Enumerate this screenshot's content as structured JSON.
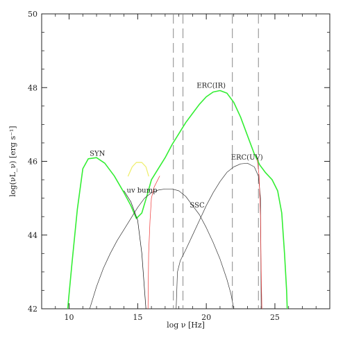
{
  "chart_data": {
    "type": "line",
    "title": "",
    "xlabel": "log ν [Hz]",
    "ylabel": "log(νL_ν) [erg s⁻¹]",
    "xlim": [
      8,
      29
    ],
    "ylim": [
      42,
      50
    ],
    "x_ticks": [
      10,
      15,
      20,
      25
    ],
    "x_tick_labels": [
      "10",
      "15",
      "20",
      "25"
    ],
    "y_ticks": [
      42,
      44,
      46,
      48,
      50
    ],
    "y_tick_labels": [
      "42",
      "44",
      "46",
      "48",
      "50"
    ],
    "grid": false,
    "legend": "none",
    "vertical_lines": [
      17.6,
      18.3,
      21.9,
      23.8
    ],
    "annotations": [
      {
        "text": "SYN",
        "x": 11.5,
        "y": 46.15
      },
      {
        "text": "uv bump",
        "x": 14.2,
        "y": 45.15
      },
      {
        "text": "SSC",
        "x": 18.8,
        "y": 44.75
      },
      {
        "text": "ERC(IR)",
        "x": 19.3,
        "y": 48.0
      },
      {
        "text": "ERC(UV)",
        "x": 21.8,
        "y": 46.05
      }
    ],
    "series": [
      {
        "color": "#33ee33",
        "width": 1.6,
        "points": [
          [
            9.9,
            42.0
          ],
          [
            10.2,
            43.2
          ],
          [
            10.6,
            44.7
          ],
          [
            11.0,
            45.8
          ],
          [
            11.4,
            46.07
          ],
          [
            12.0,
            46.1
          ],
          [
            12.6,
            45.95
          ],
          [
            13.3,
            45.6
          ],
          [
            14.0,
            45.15
          ],
          [
            14.5,
            44.8
          ],
          [
            14.9,
            44.45
          ],
          [
            15.3,
            44.6
          ],
          [
            15.7,
            45.1
          ],
          [
            16.0,
            45.5
          ],
          [
            16.5,
            45.8
          ],
          [
            17.0,
            46.1
          ],
          [
            17.5,
            46.45
          ],
          [
            18.0,
            46.75
          ],
          [
            18.5,
            47.05
          ],
          [
            19.0,
            47.3
          ],
          [
            19.5,
            47.55
          ],
          [
            20.0,
            47.75
          ],
          [
            20.5,
            47.88
          ],
          [
            21.0,
            47.92
          ],
          [
            21.5,
            47.85
          ],
          [
            22.0,
            47.6
          ],
          [
            22.5,
            47.2
          ],
          [
            23.0,
            46.7
          ],
          [
            23.5,
            46.2
          ],
          [
            23.9,
            45.9
          ],
          [
            24.3,
            45.7
          ],
          [
            24.8,
            45.5
          ],
          [
            25.2,
            45.2
          ],
          [
            25.5,
            44.6
          ],
          [
            25.7,
            43.5
          ],
          [
            25.85,
            42.5
          ],
          [
            25.9,
            42.0
          ]
        ]
      },
      {
        "color": "#111111",
        "width": 0.7,
        "points": [
          [
            14.0,
            45.2
          ],
          [
            14.5,
            44.9
          ],
          [
            15.0,
            44.4
          ],
          [
            15.3,
            43.5
          ],
          [
            15.5,
            42.5
          ],
          [
            15.6,
            42.0
          ]
        ]
      },
      {
        "color": "#333333",
        "width": 0.7,
        "points": [
          [
            11.5,
            42.0
          ],
          [
            12.0,
            42.6
          ],
          [
            12.5,
            43.1
          ],
          [
            13.0,
            43.5
          ],
          [
            13.5,
            43.85
          ],
          [
            14.0,
            44.15
          ],
          [
            14.5,
            44.45
          ],
          [
            15.0,
            44.75
          ],
          [
            15.5,
            45.0
          ],
          [
            16.0,
            45.15
          ],
          [
            16.5,
            45.22
          ],
          [
            17.0,
            45.25
          ],
          [
            17.5,
            45.25
          ],
          [
            18.0,
            45.2
          ],
          [
            18.5,
            45.05
          ],
          [
            19.0,
            44.8
          ],
          [
            19.5,
            44.55
          ],
          [
            20.0,
            44.2
          ],
          [
            20.5,
            43.8
          ],
          [
            21.0,
            43.35
          ],
          [
            21.5,
            42.8
          ],
          [
            21.8,
            42.4
          ],
          [
            22.0,
            42.0
          ]
        ]
      },
      {
        "color": "#333333",
        "width": 0.7,
        "points": [
          [
            17.8,
            42.0
          ],
          [
            17.9,
            43.0
          ],
          [
            18.1,
            43.3
          ],
          [
            18.5,
            43.6
          ],
          [
            19.0,
            44.0
          ],
          [
            19.5,
            44.4
          ],
          [
            20.0,
            44.8
          ],
          [
            20.5,
            45.15
          ],
          [
            21.0,
            45.45
          ],
          [
            21.5,
            45.7
          ],
          [
            22.0,
            45.85
          ],
          [
            22.5,
            45.93
          ],
          [
            23.0,
            45.95
          ],
          [
            23.5,
            45.85
          ],
          [
            23.8,
            45.6
          ],
          [
            23.95,
            45.0
          ],
          [
            24.0,
            42.0
          ]
        ]
      },
      {
        "color": "#ee3333",
        "width": 0.7,
        "points": [
          [
            15.75,
            42.0
          ],
          [
            15.8,
            43.5
          ],
          [
            15.9,
            44.4
          ],
          [
            16.0,
            45.0
          ],
          [
            16.2,
            45.3
          ],
          [
            16.6,
            45.6
          ]
        ]
      },
      {
        "color": "#ee3333",
        "width": 0.7,
        "points": [
          [
            23.7,
            46.1
          ],
          [
            23.85,
            45.6
          ],
          [
            23.95,
            44.5
          ],
          [
            24.0,
            43.0
          ],
          [
            24.05,
            42.0
          ]
        ]
      },
      {
        "color": "#eeee66",
        "width": 1.2,
        "points": [
          [
            14.3,
            45.6
          ],
          [
            14.6,
            45.85
          ],
          [
            14.9,
            45.97
          ],
          [
            15.3,
            45.97
          ],
          [
            15.6,
            45.85
          ],
          [
            15.8,
            45.6
          ]
        ]
      }
    ]
  }
}
